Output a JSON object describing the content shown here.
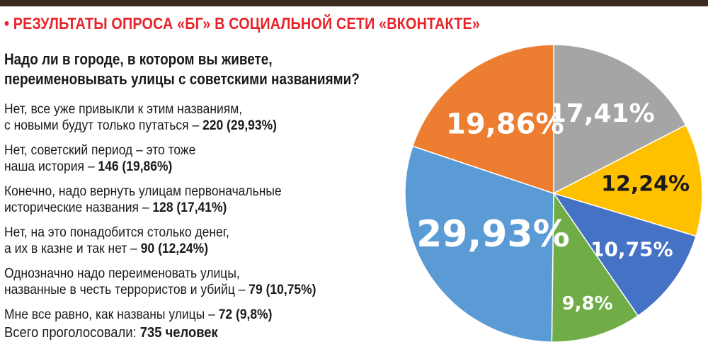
{
  "header": {
    "title": "• РЕЗУЛЬТАТЫ ОПРОСА «БГ» В СОЦИАЛЬНОЙ СЕТИ «ВКОНТАКТЕ»",
    "question_line1": "Надо ли в городе, в котором вы живете,",
    "question_line2": "переименовывать улицы с советскими названиями?",
    "title_color": "#e8242b"
  },
  "answers": [
    {
      "line1": "Нет, все уже привыкли к этим названиям,",
      "line2": "с новыми будут только путаться – ",
      "result": "220 (29,93%)"
    },
    {
      "line1": "Нет, советский период – это тоже",
      "line2": "наша история – ",
      "result": "146 (19,86%)"
    },
    {
      "line1": "Конечно, надо вернуть улицам первоначальные",
      "line2": "исторические названия – ",
      "result": "128 (17,41%)"
    },
    {
      "line1": "Нет, на это понадобится столько денег,",
      "line2": "а их в казне и так нет – ",
      "result": "90 (12,24%)"
    },
    {
      "line1": "Однозначно надо переименовать улицы,",
      "line2": "названные в честь террористов и убийц – ",
      "result": "79 (10,75%)"
    },
    {
      "line1": "",
      "line2": "Мне все равно, как названы улицы – ",
      "result": "72 (9,8%)"
    }
  ],
  "total": {
    "label": "Всего проголосовали: ",
    "value": "735 человек"
  },
  "chart_data": {
    "type": "pie",
    "start": "12 o'clock, clockwise",
    "slices": [
      {
        "value": 17.41,
        "label": "17,41%",
        "color": "#a5a5a5",
        "label_color": "#ffffff"
      },
      {
        "value": 12.24,
        "label": "12,24%",
        "color": "#ffc000",
        "label_color": "#1a1a1a"
      },
      {
        "value": 10.75,
        "label": "10,75%",
        "color": "#4472c4",
        "label_color": "#ffffff"
      },
      {
        "value": 9.8,
        "label": "9,8%",
        "color": "#70ad47",
        "label_color": "#ffffff"
      },
      {
        "value": 29.93,
        "label": "29,93%",
        "color": "#5b9bd5",
        "label_color": "#ffffff"
      },
      {
        "value": 19.86,
        "label": "19,86%",
        "color": "#ed7d31",
        "label_color": "#ffffff"
      }
    ]
  }
}
